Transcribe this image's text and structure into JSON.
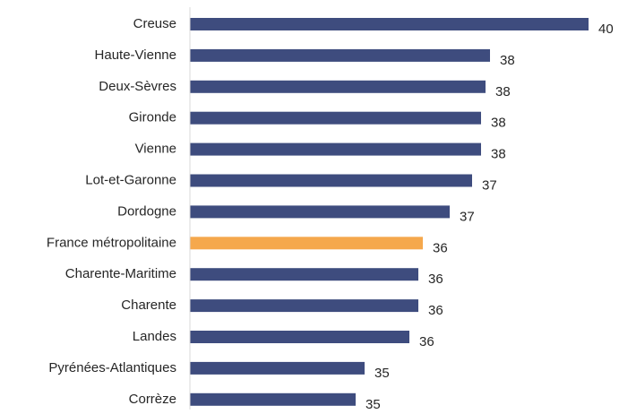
{
  "chart_data": {
    "type": "barh",
    "categories": [
      "Creuse",
      "Haute-Vienne",
      "Deux-Sèvres",
      "Gironde",
      "Vienne",
      "Lot-et-Garonne",
      "Dordogne",
      "France métropolitaine",
      "Charente-Maritime",
      "Charente",
      "Landes",
      "Pyrénées-Atlantiques",
      "Corrèze"
    ],
    "values": [
      40.0,
      37.8,
      37.7,
      37.6,
      37.6,
      37.4,
      36.9,
      36.3,
      36.2,
      36.2,
      36.0,
      35.0,
      34.8
    ],
    "value_labels": [
      "40",
      "38",
      "38",
      "38",
      "38",
      "37",
      "37",
      "36",
      "36",
      "36",
      "36",
      "35",
      "35"
    ],
    "colors": [
      "#3e4c7e",
      "#3e4c7e",
      "#3e4c7e",
      "#3e4c7e",
      "#3e4c7e",
      "#3e4c7e",
      "#3e4c7e",
      "#f5a84c",
      "#3e4c7e",
      "#3e4c7e",
      "#3e4c7e",
      "#3e4c7e",
      "#3e4c7e"
    ],
    "xlim": [
      31.1,
      40.5
    ]
  }
}
